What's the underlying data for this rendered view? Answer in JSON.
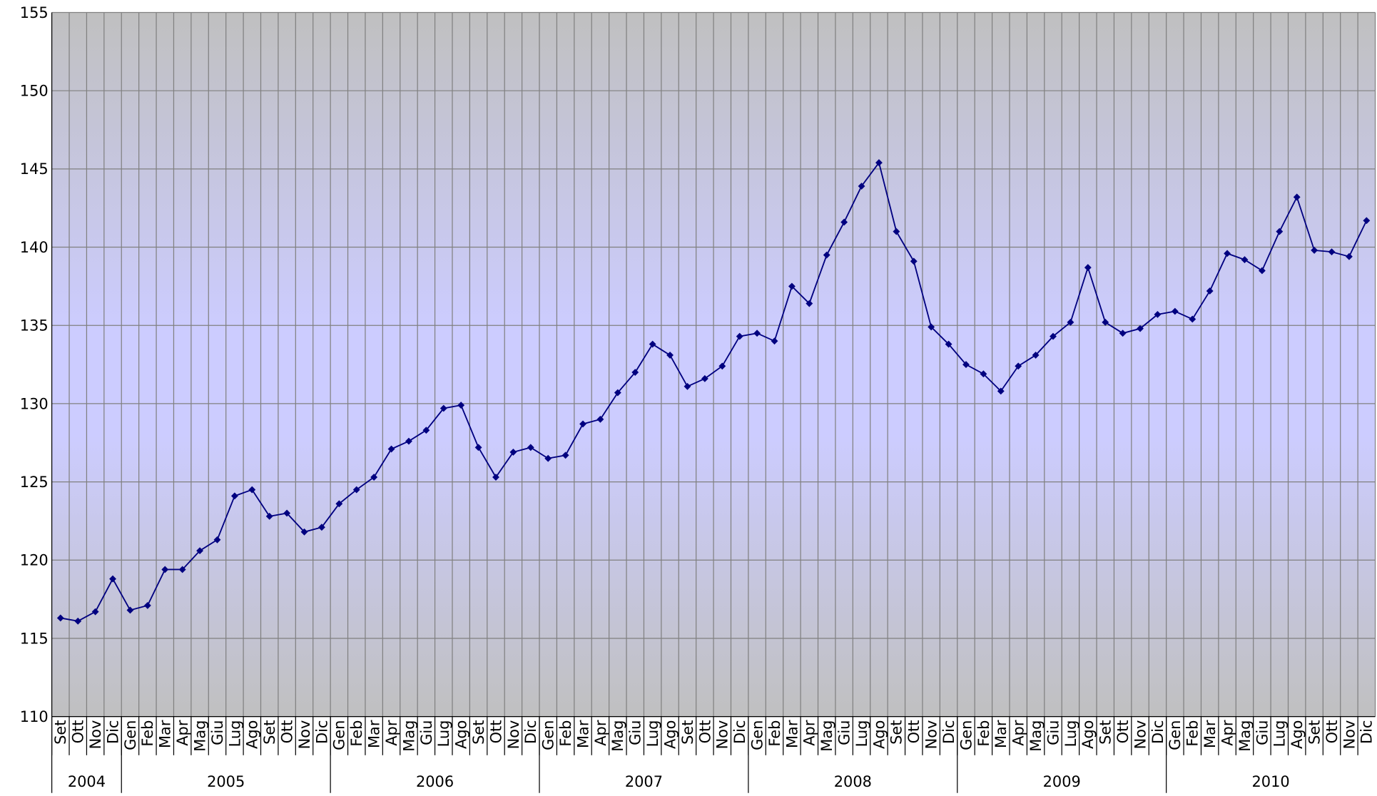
{
  "chart_data": {
    "type": "line",
    "color": "#000080",
    "ylim": [
      110,
      155
    ],
    "yticks": [
      110,
      115,
      120,
      125,
      130,
      135,
      140,
      145,
      150,
      155
    ],
    "grid": true,
    "groups": [
      {
        "name": "2004",
        "categories": [
          "Set",
          "Ott",
          "Nov",
          "Dic"
        ],
        "values": [
          116.3,
          116.1,
          116.7,
          118.8
        ]
      },
      {
        "name": "2005",
        "categories": [
          "Gen",
          "Feb",
          "Mar",
          "Apr",
          "Mag",
          "Giu",
          "Lug",
          "Ago",
          "Set",
          "Ott",
          "Nov",
          "Dic"
        ],
        "values": [
          116.8,
          117.1,
          119.4,
          119.4,
          120.6,
          121.3,
          124.1,
          124.5,
          122.8,
          123.0,
          121.8,
          122.1
        ]
      },
      {
        "name": "2006",
        "categories": [
          "Gen",
          "Feb",
          "Mar",
          "Apr",
          "Mag",
          "Giu",
          "Lug",
          "Ago",
          "Set",
          "Ott",
          "Nov",
          "Dic"
        ],
        "values": [
          123.6,
          124.5,
          125.3,
          127.1,
          127.6,
          128.3,
          129.7,
          129.9,
          127.2,
          125.3,
          126.9,
          127.2
        ]
      },
      {
        "name": "2007",
        "categories": [
          "Gen",
          "Feb",
          "Mar",
          "Apr",
          "Mag",
          "Giu",
          "Lug",
          "Ago",
          "Set",
          "Ott",
          "Nov",
          "Dic"
        ],
        "values": [
          126.5,
          126.7,
          128.7,
          129.0,
          130.7,
          132.0,
          133.8,
          133.1,
          131.1,
          131.6,
          132.4,
          134.3
        ]
      },
      {
        "name": "2008",
        "categories": [
          "Gen",
          "Feb",
          "Mar",
          "Apr",
          "Mag",
          "Giu",
          "Lug",
          "Ago",
          "Set",
          "Ott",
          "Nov",
          "Dic"
        ],
        "values": [
          134.5,
          134.0,
          137.5,
          136.4,
          139.5,
          141.6,
          143.9,
          145.4,
          141.0,
          139.1,
          134.9,
          133.8
        ]
      },
      {
        "name": "2009",
        "categories": [
          "Gen",
          "Feb",
          "Mar",
          "Apr",
          "Mag",
          "Giu",
          "Lug",
          "Ago",
          "Set",
          "Ott",
          "Nov",
          "Dic"
        ],
        "values": [
          132.5,
          131.9,
          130.8,
          132.4,
          133.1,
          134.3,
          135.2,
          138.7,
          135.2,
          134.5,
          134.8,
          135.7
        ]
      },
      {
        "name": "2010",
        "categories": [
          "Gen",
          "Feb",
          "Mar",
          "Apr",
          "Mag",
          "Giu",
          "Lug",
          "Ago",
          "Set",
          "Ott",
          "Nov",
          "Dic"
        ],
        "values": [
          135.9,
          135.4,
          137.2,
          139.6,
          139.2,
          138.5,
          141.0,
          143.2,
          139.8,
          139.7,
          139.4,
          141.7
        ]
      }
    ]
  }
}
